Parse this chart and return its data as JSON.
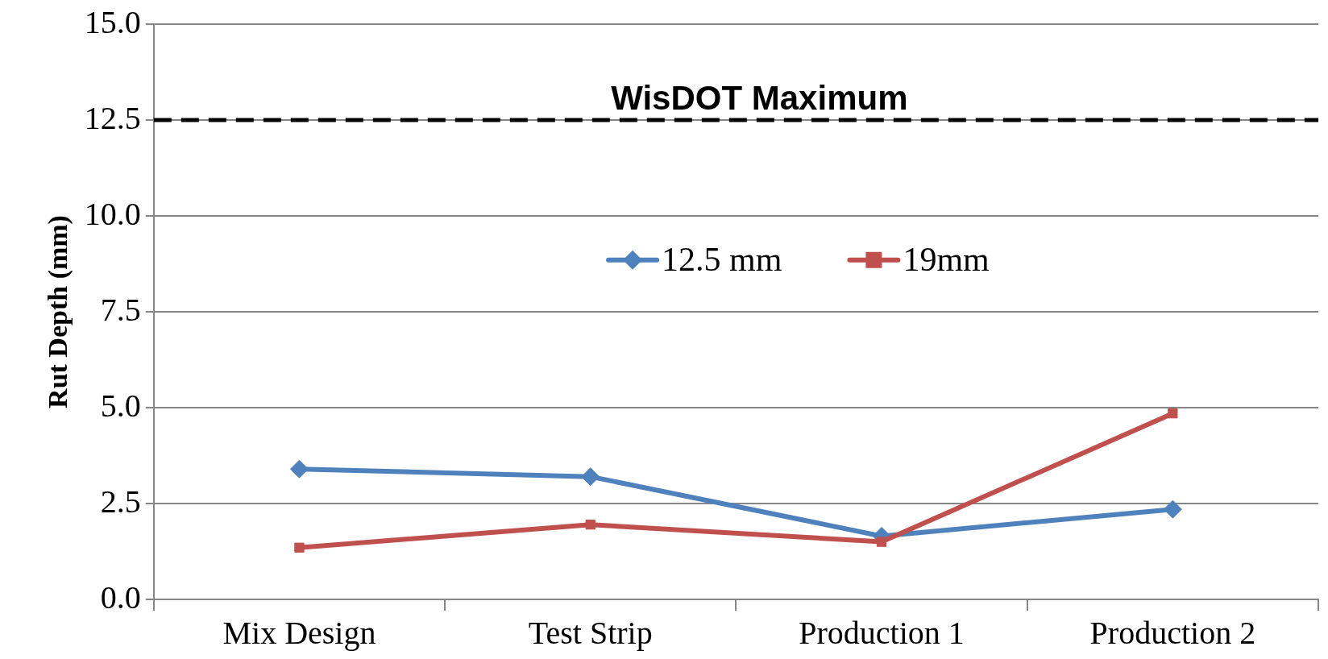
{
  "chart_data": {
    "type": "line",
    "ylabel": "Rut Depth (mm)",
    "categories": [
      "Mix Design",
      "Test Strip",
      "Production 1",
      "Production 2"
    ],
    "series": [
      {
        "name": "12.5 mm",
        "color": "#4f81bd",
        "marker": "diamond",
        "values": [
          3.4,
          3.2,
          1.65,
          2.35
        ]
      },
      {
        "name": "19mm",
        "color": "#c0504d",
        "marker": "square",
        "values": [
          1.35,
          1.95,
          1.5,
          4.85
        ]
      }
    ],
    "ylim": [
      0,
      15
    ],
    "yticks": [
      {
        "value": 0,
        "label": "0.0"
      },
      {
        "value": 2.5,
        "label": "2.5"
      },
      {
        "value": 5,
        "label": "5.0"
      },
      {
        "value": 7.5,
        "label": "7.5"
      },
      {
        "value": 10,
        "label": "10.0"
      },
      {
        "value": 12.5,
        "label": "12.5"
      },
      {
        "value": 15,
        "label": "15.0"
      }
    ],
    "grid": "y",
    "legend": "center",
    "ref_lines": [
      {
        "axis": "y",
        "value": 12.5,
        "label": "WisDOT Maximum",
        "color": "#000000",
        "line_style": "dashed"
      }
    ]
  }
}
